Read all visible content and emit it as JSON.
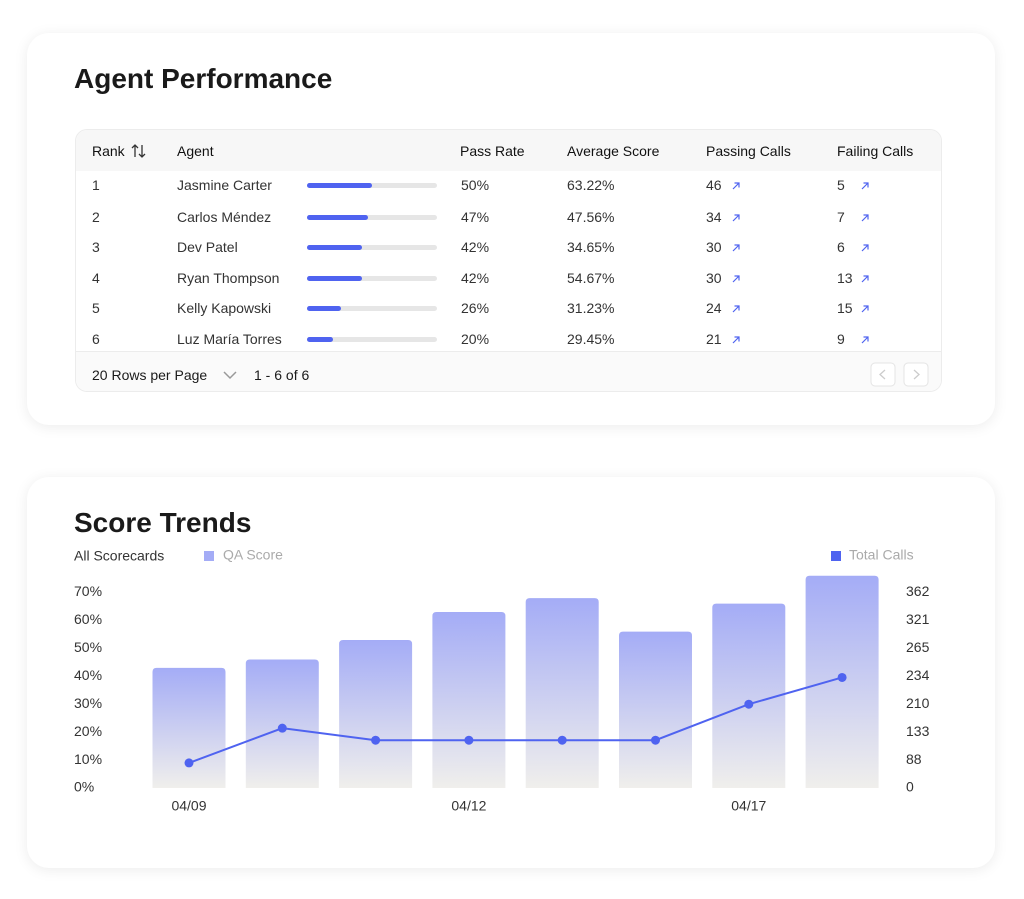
{
  "performance": {
    "title": "Agent Performance",
    "columns": [
      "Rank",
      "Agent",
      "Pass Rate",
      "Average Score",
      "Passing Calls",
      "Failing Calls"
    ],
    "rows": [
      {
        "rank": 1,
        "agent": "Jasmine Carter",
        "pass_rate": {
          "value": 50,
          "label": "50%"
        },
        "average_score": "63.22%",
        "passing_calls": 46,
        "failing_calls": 5
      },
      {
        "rank": 2,
        "agent": "Carlos Méndez",
        "pass_rate": {
          "value": 47,
          "label": "47%"
        },
        "average_score": "47.56%",
        "passing_calls": 34,
        "failing_calls": 7
      },
      {
        "rank": 3,
        "agent": "Dev Patel",
        "pass_rate": {
          "value": 42,
          "label": "42%"
        },
        "average_score": "34.65%",
        "passing_calls": 30,
        "failing_calls": 6
      },
      {
        "rank": 4,
        "agent": "Ryan Thompson",
        "pass_rate": {
          "value": 42,
          "label": "42%"
        },
        "average_score": "54.67%",
        "passing_calls": 30,
        "failing_calls": 13
      },
      {
        "rank": 5,
        "agent": "Kelly Kapowski",
        "pass_rate": {
          "value": 26,
          "label": "26%"
        },
        "average_score": "31.23%",
        "passing_calls": 24,
        "failing_calls": 15
      },
      {
        "rank": 6,
        "agent": "Luz María Torres",
        "pass_rate": {
          "value": 20,
          "label": "20%"
        },
        "average_score": "29.45%",
        "passing_calls": 21,
        "failing_calls": 9
      }
    ],
    "footer": {
      "rows_per_page": "20 Rows per Page",
      "range": "1 - 6 of 6"
    }
  },
  "chart_data": {
    "type": "bar",
    "title": "Score Trends",
    "filter": "All Scorecards",
    "categories": [
      "04/09",
      null,
      null,
      "04/12",
      null,
      null,
      "04/17",
      null
    ],
    "series": [
      {
        "name": "QA Score",
        "type": "bar",
        "color": "#a4acf6",
        "values": [
          43,
          46,
          53,
          63,
          68,
          56,
          66,
          76
        ]
      },
      {
        "name": "Total Calls",
        "type": "line",
        "axis": "y2",
        "color": "#4f63f0",
        "values": [
          79,
          144,
          120,
          120,
          120,
          120,
          210,
          233
        ]
      }
    ],
    "ylim": [
      0,
      70
    ],
    "yticks": [
      {
        "value": 0,
        "label": "0%"
      },
      {
        "value": 10,
        "label": "10%"
      },
      {
        "value": 20,
        "label": "20%"
      },
      {
        "value": 30,
        "label": "30%"
      },
      {
        "value": 40,
        "label": "40%"
      },
      {
        "value": 50,
        "label": "50%"
      },
      {
        "value": 60,
        "label": "60%"
      },
      {
        "value": 70,
        "label": "70%"
      }
    ],
    "y2lim": [
      0,
      362
    ],
    "y2ticks": [
      0,
      88,
      133,
      210,
      234,
      265,
      321,
      362
    ]
  }
}
